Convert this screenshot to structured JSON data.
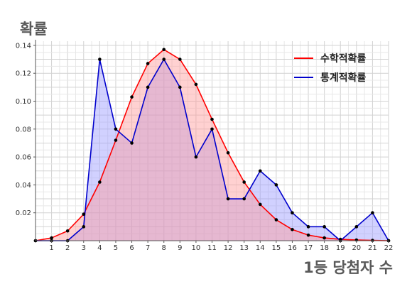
{
  "chart_data": {
    "type": "area",
    "ylabel": "확률",
    "xlabel": "1등 당첨자 수",
    "x": [
      0,
      1,
      2,
      3,
      4,
      5,
      6,
      7,
      8,
      9,
      10,
      11,
      12,
      13,
      14,
      15,
      16,
      17,
      18,
      19,
      20,
      21,
      22
    ],
    "x_ticks": [
      1,
      2,
      3,
      4,
      5,
      6,
      7,
      8,
      9,
      10,
      11,
      12,
      13,
      14,
      15,
      16,
      17,
      18,
      19,
      20,
      21,
      22
    ],
    "y_ticks": [
      0.02,
      0.04,
      0.06,
      0.08,
      0.1,
      0.12,
      0.14
    ],
    "y_tick_labels": [
      "0.02",
      "0.04",
      "0.06",
      "0.08",
      "0.10",
      "0.12",
      "0.14"
    ],
    "xlim": [
      0,
      22
    ],
    "ylim": [
      0,
      0.143
    ],
    "grid": true,
    "legend_position": "top-right",
    "series": [
      {
        "name": "수학적확률",
        "color": "#ff0000",
        "fill": "#ff9999",
        "values": [
          0.0,
          0.002,
          0.007,
          0.019,
          0.042,
          0.072,
          0.103,
          0.127,
          0.137,
          0.13,
          0.112,
          0.087,
          0.063,
          0.042,
          0.026,
          0.015,
          0.008,
          0.004,
          0.002,
          0.001,
          0.0005,
          0.0002,
          0.0
        ]
      },
      {
        "name": "통계적확률",
        "color": "#0000cc",
        "fill": "#9999ff",
        "values": [
          0.0,
          0.0,
          0.0,
          0.01,
          0.13,
          0.08,
          0.07,
          0.11,
          0.13,
          0.11,
          0.06,
          0.08,
          0.03,
          0.03,
          0.05,
          0.04,
          0.02,
          0.01,
          0.01,
          0.0,
          0.01,
          0.02,
          0.0
        ]
      }
    ]
  }
}
